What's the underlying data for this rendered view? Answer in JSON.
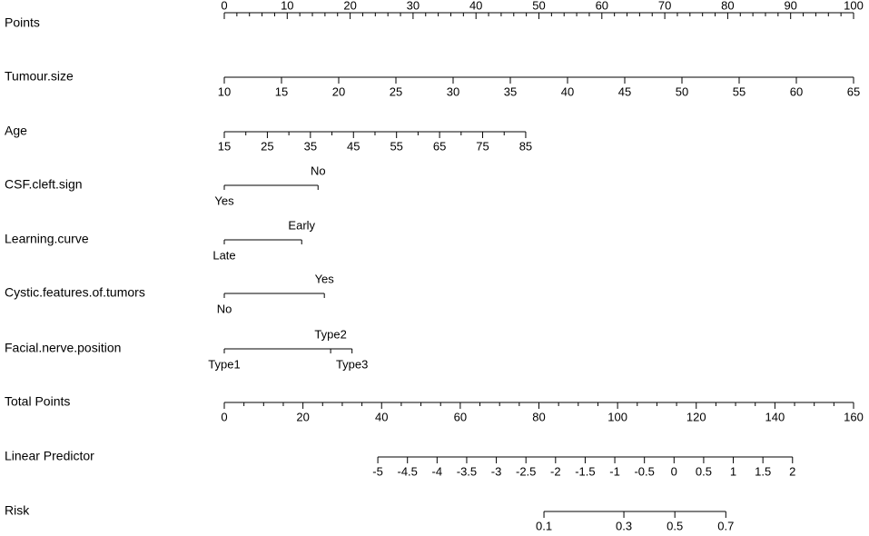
{
  "chart_data": {
    "type": "nomogram",
    "xlim": [
      0,
      100
    ],
    "rows": [
      {
        "label": "Points",
        "ticks": [
          0,
          10,
          20,
          30,
          40,
          50,
          60,
          70,
          80,
          90,
          100
        ],
        "minor_ticks": [
          2,
          4,
          6,
          8,
          12,
          14,
          16,
          18,
          22,
          24,
          26,
          28,
          32,
          34,
          36,
          38,
          42,
          44,
          46,
          48,
          52,
          54,
          56,
          58,
          62,
          64,
          66,
          68,
          72,
          74,
          76,
          78,
          82,
          84,
          86,
          88,
          92,
          94,
          96,
          98
        ],
        "lim": [
          0,
          100
        ],
        "points_lim": [
          0,
          100
        ]
      },
      {
        "label": "Tumour.size",
        "ticks": [
          10,
          15,
          20,
          25,
          30,
          35,
          40,
          45,
          50,
          55,
          60,
          65
        ],
        "lim": [
          10,
          65
        ],
        "points_lim": [
          0,
          100
        ]
      },
      {
        "label": "Age",
        "ticks": [
          15,
          25,
          35,
          45,
          55,
          65,
          75,
          85
        ],
        "minor_ticks": [
          20,
          30,
          40,
          50,
          60,
          70,
          80
        ],
        "lim": [
          15,
          85
        ],
        "points_lim": [
          0,
          47.9
        ]
      },
      {
        "label": "CSF.cleft.sign",
        "ticks": [
          "Yes",
          "No"
        ],
        "points": [
          0,
          14.9
        ]
      },
      {
        "label": "Learning.curve",
        "ticks": [
          "Late",
          "Early"
        ],
        "points": [
          0,
          12.3
        ]
      },
      {
        "label": "Cystic.features.of.tumors",
        "ticks": [
          "No",
          "Yes"
        ],
        "points": [
          0,
          15.9
        ]
      },
      {
        "label": "Facial.nerve.position",
        "ticks": [
          "Type1",
          "Type2",
          "Type3"
        ],
        "points": [
          0,
          16.9,
          20.3
        ]
      },
      {
        "label": "Total Points",
        "ticks": [
          0,
          20,
          40,
          60,
          80,
          100,
          120,
          140,
          160
        ],
        "minor_ticks": [
          5,
          10,
          15,
          25,
          30,
          35,
          45,
          50,
          55,
          65,
          70,
          75,
          85,
          90,
          95,
          105,
          110,
          115,
          125,
          130,
          135,
          145,
          150,
          155
        ],
        "lim": [
          0,
          160
        ],
        "points_lim": [
          0,
          100
        ]
      },
      {
        "label": "Linear Predictor",
        "ticks": [
          -5,
          -4.5,
          -4,
          -3.5,
          -3,
          -2.5,
          -2,
          -1.5,
          -1,
          -0.5,
          0,
          0.5,
          1,
          1.5,
          2
        ],
        "lim": [
          -5,
          2
        ],
        "points_lim": [
          24.4,
          90.3
        ]
      },
      {
        "label": "Risk",
        "ticks": [
          0.1,
          0.3,
          0.5,
          0.7
        ],
        "points": [
          50.8,
          63.5,
          71.6,
          79.7
        ]
      }
    ]
  }
}
